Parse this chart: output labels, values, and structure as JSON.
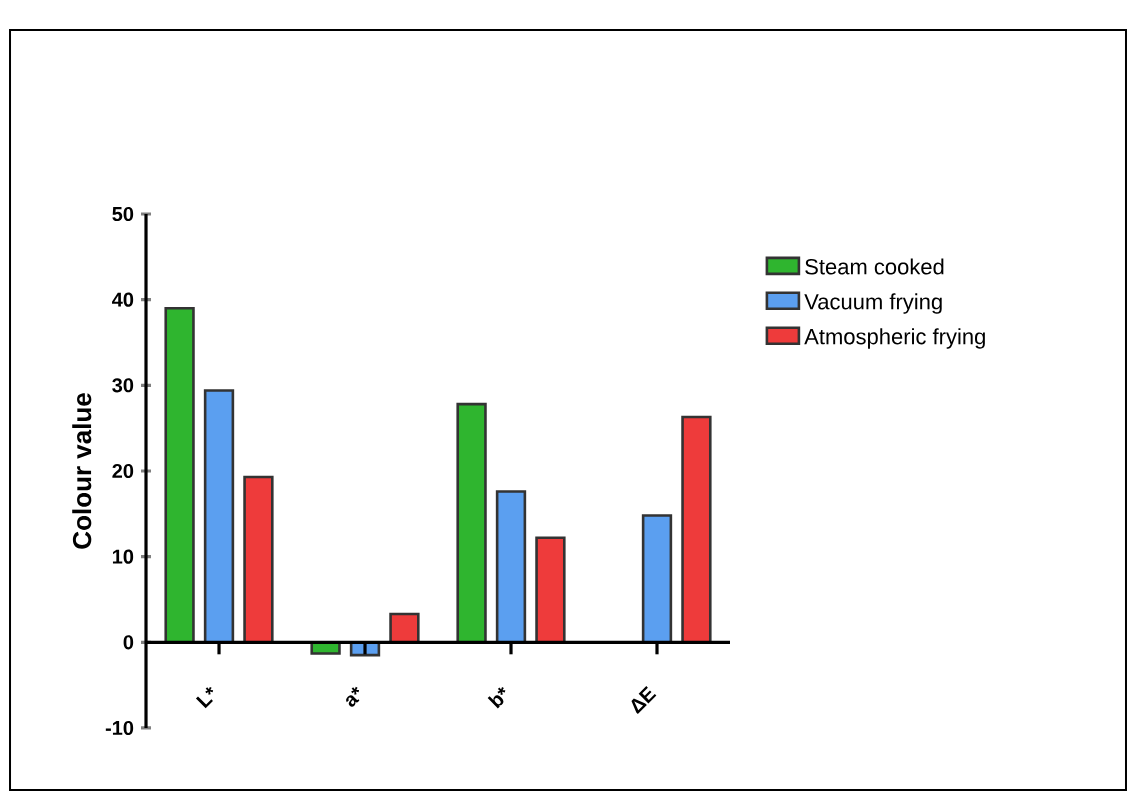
{
  "chart_data": {
    "type": "bar",
    "ylabel": "Colour value",
    "categories": [
      "L*",
      "a*",
      "b*",
      "ΔE"
    ],
    "series": [
      {
        "name": "Steam cooked",
        "color": "#2fb52f",
        "values": [
          39,
          -1.3,
          27.8,
          null
        ]
      },
      {
        "name": "Vacuum frying",
        "color": "#5b9ff0",
        "values": [
          29.4,
          -1.5,
          17.6,
          14.8
        ]
      },
      {
        "name": "Atmospheric frying",
        "color": "#ee3b3b",
        "values": [
          19.3,
          3.3,
          12.2,
          26.3
        ]
      }
    ],
    "ylim": [
      -10,
      50
    ],
    "yticks": [
      -10,
      0,
      10,
      20,
      30,
      40,
      50
    ],
    "legend": "right"
  }
}
